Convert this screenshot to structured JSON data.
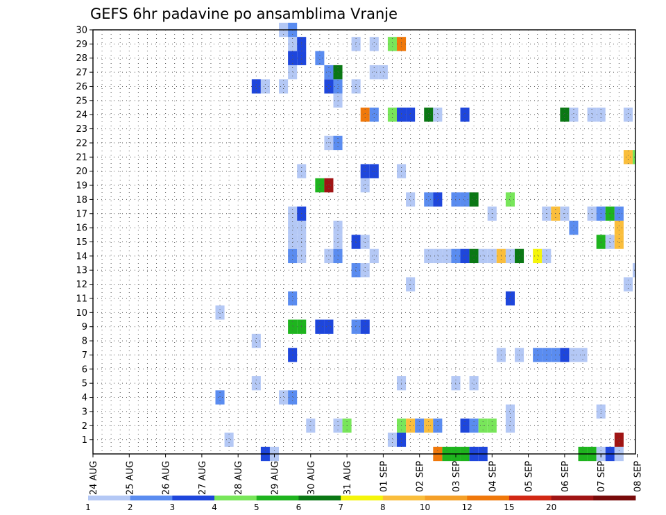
{
  "chart_data": {
    "type": "heatmap",
    "title": "GEFS 6hr padavine po ansamblima Vranje",
    "xlabel": "",
    "ylabel": "",
    "x_tick_labels": [
      "24 AUG",
      "25 AUG",
      "26 AUG",
      "27 AUG",
      "28 AUG",
      "29 AUG",
      "30 AUG",
      "31 AUG",
      "01 SEP",
      "02 SEP",
      "03 SEP",
      "04 SEP",
      "05 SEP",
      "06 SEP",
      "07 SEP",
      "08 SEP"
    ],
    "y_tick_labels": [
      "1",
      "2",
      "3",
      "4",
      "5",
      "6",
      "7",
      "8",
      "9",
      "10",
      "11",
      "12",
      "13",
      "14",
      "15",
      "16",
      "17",
      "18",
      "19",
      "20",
      "21",
      "22",
      "23",
      "24",
      "25",
      "26",
      "27",
      "28",
      "29",
      "30"
    ],
    "ylim": [
      0,
      30
    ],
    "x_steps_per_day": 4,
    "time_steps": 60,
    "grid": true,
    "colorbar": {
      "labels": [
        "1",
        "2",
        "3",
        "4",
        "5",
        "6",
        "7",
        "8",
        "10",
        "12",
        "15",
        "20"
      ],
      "colors": [
        "#b4c8f5",
        "#5a8cf0",
        "#1e46dc",
        "#78e65a",
        "#1eb41e",
        "#0a7814",
        "#f5f50a",
        "#fabe3c",
        "#f5a028",
        "#f0780a",
        "#d22814",
        "#a01414",
        "#780a0a"
      ]
    },
    "cells": [
      {
        "m": 0,
        "t": 39,
        "c": 4
      },
      {
        "m": 0,
        "t": 40,
        "c": 4
      },
      {
        "m": 0,
        "t": 38,
        "c": 9
      },
      {
        "m": 0,
        "t": 41,
        "c": 4
      },
      {
        "m": 0,
        "t": 42,
        "c": 2
      },
      {
        "m": 0,
        "t": 43,
        "c": 2
      },
      {
        "m": 0,
        "t": 54,
        "c": 4
      },
      {
        "m": 0,
        "t": 55,
        "c": 4
      },
      {
        "m": 0,
        "t": 56,
        "c": 0
      },
      {
        "m": 0,
        "t": 57,
        "c": 2
      },
      {
        "m": 0,
        "t": 58,
        "c": 0
      },
      {
        "m": 0,
        "t": 19,
        "c": 2
      },
      {
        "m": 0,
        "t": 20,
        "c": 0
      },
      {
        "m": 1,
        "t": 15,
        "c": 0
      },
      {
        "m": 1,
        "t": 33,
        "c": 0
      },
      {
        "m": 1,
        "t": 34,
        "c": 2
      },
      {
        "m": 1,
        "t": 58,
        "c": 11
      },
      {
        "m": 2,
        "t": 24,
        "c": 0
      },
      {
        "m": 2,
        "t": 27,
        "c": 0
      },
      {
        "m": 2,
        "t": 28,
        "c": 3
      },
      {
        "m": 2,
        "t": 34,
        "c": 3
      },
      {
        "m": 2,
        "t": 35,
        "c": 7
      },
      {
        "m": 2,
        "t": 36,
        "c": 1
      },
      {
        "m": 2,
        "t": 37,
        "c": 7
      },
      {
        "m": 2,
        "t": 38,
        "c": 1
      },
      {
        "m": 2,
        "t": 41,
        "c": 2
      },
      {
        "m": 2,
        "t": 42,
        "c": 1
      },
      {
        "m": 2,
        "t": 43,
        "c": 3
      },
      {
        "m": 2,
        "t": 44,
        "c": 3
      },
      {
        "m": 2,
        "t": 46,
        "c": 0
      },
      {
        "m": 3,
        "t": 46,
        "c": 0
      },
      {
        "m": 3,
        "t": 56,
        "c": 0
      },
      {
        "m": 4,
        "t": 14,
        "c": 1
      },
      {
        "m": 4,
        "t": 21,
        "c": 0
      },
      {
        "m": 4,
        "t": 22,
        "c": 1
      },
      {
        "m": 5,
        "t": 18,
        "c": 0
      },
      {
        "m": 5,
        "t": 34,
        "c": 0
      },
      {
        "m": 5,
        "t": 40,
        "c": 0
      },
      {
        "m": 5,
        "t": 42,
        "c": 0
      },
      {
        "m": 7,
        "t": 22,
        "c": 2
      },
      {
        "m": 7,
        "t": 45,
        "c": 0
      },
      {
        "m": 7,
        "t": 47,
        "c": 0
      },
      {
        "m": 7,
        "t": 49,
        "c": 1
      },
      {
        "m": 7,
        "t": 50,
        "c": 1
      },
      {
        "m": 7,
        "t": 51,
        "c": 1
      },
      {
        "m": 7,
        "t": 52,
        "c": 2
      },
      {
        "m": 7,
        "t": 53,
        "c": 0
      },
      {
        "m": 7,
        "t": 54,
        "c": 0
      },
      {
        "m": 8,
        "t": 18,
        "c": 0
      },
      {
        "m": 9,
        "t": 22,
        "c": 4
      },
      {
        "m": 9,
        "t": 23,
        "c": 4
      },
      {
        "m": 9,
        "t": 25,
        "c": 2
      },
      {
        "m": 9,
        "t": 26,
        "c": 2
      },
      {
        "m": 9,
        "t": 29,
        "c": 1
      },
      {
        "m": 9,
        "t": 30,
        "c": 2
      },
      {
        "m": 10,
        "t": 14,
        "c": 0
      },
      {
        "m": 11,
        "t": 22,
        "c": 1
      },
      {
        "m": 11,
        "t": 46,
        "c": 2
      },
      {
        "m": 12,
        "t": 35,
        "c": 0
      },
      {
        "m": 12,
        "t": 59,
        "c": 0
      },
      {
        "m": 13,
        "t": 29,
        "c": 1
      },
      {
        "m": 13,
        "t": 30,
        "c": 0
      },
      {
        "m": 13,
        "t": 60,
        "c": 0
      },
      {
        "m": 14,
        "t": 22,
        "c": 1
      },
      {
        "m": 14,
        "t": 23,
        "c": 0
      },
      {
        "m": 14,
        "t": 26,
        "c": 0
      },
      {
        "m": 14,
        "t": 27,
        "c": 1
      },
      {
        "m": 14,
        "t": 31,
        "c": 0
      },
      {
        "m": 14,
        "t": 37,
        "c": 0
      },
      {
        "m": 14,
        "t": 38,
        "c": 0
      },
      {
        "m": 14,
        "t": 39,
        "c": 0
      },
      {
        "m": 14,
        "t": 40,
        "c": 1
      },
      {
        "m": 14,
        "t": 41,
        "c": 2
      },
      {
        "m": 14,
        "t": 42,
        "c": 5
      },
      {
        "m": 14,
        "t": 43,
        "c": 0
      },
      {
        "m": 14,
        "t": 44,
        "c": 0
      },
      {
        "m": 14,
        "t": 45,
        "c": 7
      },
      {
        "m": 14,
        "t": 46,
        "c": 0
      },
      {
        "m": 14,
        "t": 47,
        "c": 5
      },
      {
        "m": 14,
        "t": 49,
        "c": 6
      },
      {
        "m": 14,
        "t": 50,
        "c": 0
      },
      {
        "m": 15,
        "t": 22,
        "c": 0
      },
      {
        "m": 15,
        "t": 23,
        "c": 0
      },
      {
        "m": 15,
        "t": 27,
        "c": 0
      },
      {
        "m": 15,
        "t": 29,
        "c": 2
      },
      {
        "m": 15,
        "t": 30,
        "c": 0
      },
      {
        "m": 15,
        "t": 56,
        "c": 4
      },
      {
        "m": 15,
        "t": 57,
        "c": 0
      },
      {
        "m": 15,
        "t": 58,
        "c": 7
      },
      {
        "m": 16,
        "t": 22,
        "c": 0
      },
      {
        "m": 16,
        "t": 23,
        "c": 0
      },
      {
        "m": 16,
        "t": 27,
        "c": 0
      },
      {
        "m": 16,
        "t": 53,
        "c": 1
      },
      {
        "m": 16,
        "t": 58,
        "c": 7
      },
      {
        "m": 17,
        "t": 22,
        "c": 0
      },
      {
        "m": 17,
        "t": 23,
        "c": 2
      },
      {
        "m": 17,
        "t": 44,
        "c": 0
      },
      {
        "m": 17,
        "t": 50,
        "c": 0
      },
      {
        "m": 17,
        "t": 51,
        "c": 7
      },
      {
        "m": 17,
        "t": 52,
        "c": 0
      },
      {
        "m": 17,
        "t": 55,
        "c": 0
      },
      {
        "m": 17,
        "t": 56,
        "c": 1
      },
      {
        "m": 17,
        "t": 57,
        "c": 4
      },
      {
        "m": 17,
        "t": 58,
        "c": 1
      },
      {
        "m": 18,
        "t": 35,
        "c": 0
      },
      {
        "m": 18,
        "t": 37,
        "c": 1
      },
      {
        "m": 18,
        "t": 38,
        "c": 2
      },
      {
        "m": 18,
        "t": 40,
        "c": 1
      },
      {
        "m": 18,
        "t": 41,
        "c": 1
      },
      {
        "m": 18,
        "t": 42,
        "c": 5
      },
      {
        "m": 18,
        "t": 46,
        "c": 3
      },
      {
        "m": 19,
        "t": 25,
        "c": 4
      },
      {
        "m": 19,
        "t": 26,
        "c": 11
      },
      {
        "m": 19,
        "t": 30,
        "c": 0
      },
      {
        "m": 20,
        "t": 23,
        "c": 0
      },
      {
        "m": 20,
        "t": 30,
        "c": 2
      },
      {
        "m": 20,
        "t": 31,
        "c": 2
      },
      {
        "m": 20,
        "t": 34,
        "c": 0
      },
      {
        "m": 21,
        "t": 59,
        "c": 7
      },
      {
        "m": 21,
        "t": 60,
        "c": 3
      },
      {
        "m": 22,
        "t": 26,
        "c": 0
      },
      {
        "m": 22,
        "t": 27,
        "c": 1
      },
      {
        "m": 24,
        "t": 30,
        "c": 9
      },
      {
        "m": 24,
        "t": 31,
        "c": 1
      },
      {
        "m": 24,
        "t": 33,
        "c": 3
      },
      {
        "m": 24,
        "t": 34,
        "c": 2
      },
      {
        "m": 24,
        "t": 35,
        "c": 2
      },
      {
        "m": 24,
        "t": 37,
        "c": 5
      },
      {
        "m": 24,
        "t": 38,
        "c": 0
      },
      {
        "m": 24,
        "t": 41,
        "c": 2
      },
      {
        "m": 24,
        "t": 52,
        "c": 5
      },
      {
        "m": 24,
        "t": 53,
        "c": 0
      },
      {
        "m": 24,
        "t": 55,
        "c": 0
      },
      {
        "m": 24,
        "t": 56,
        "c": 0
      },
      {
        "m": 24,
        "t": 59,
        "c": 0
      },
      {
        "m": 25,
        "t": 27,
        "c": 0
      },
      {
        "m": 26,
        "t": 18,
        "c": 2
      },
      {
        "m": 26,
        "t": 19,
        "c": 0
      },
      {
        "m": 26,
        "t": 21,
        "c": 0
      },
      {
        "m": 26,
        "t": 26,
        "c": 2
      },
      {
        "m": 26,
        "t": 27,
        "c": 1
      },
      {
        "m": 26,
        "t": 29,
        "c": 0
      },
      {
        "m": 27,
        "t": 22,
        "c": 0
      },
      {
        "m": 27,
        "t": 26,
        "c": 1
      },
      {
        "m": 27,
        "t": 27,
        "c": 5
      },
      {
        "m": 27,
        "t": 31,
        "c": 0
      },
      {
        "m": 27,
        "t": 32,
        "c": 0
      },
      {
        "m": 28,
        "t": 22,
        "c": 2
      },
      {
        "m": 28,
        "t": 23,
        "c": 2
      },
      {
        "m": 28,
        "t": 25,
        "c": 1
      },
      {
        "m": 29,
        "t": 22,
        "c": 0
      },
      {
        "m": 29,
        "t": 23,
        "c": 2
      },
      {
        "m": 29,
        "t": 29,
        "c": 0
      },
      {
        "m": 29,
        "t": 31,
        "c": 0
      },
      {
        "m": 29,
        "t": 33,
        "c": 3
      },
      {
        "m": 29,
        "t": 34,
        "c": 9
      },
      {
        "m": 30,
        "t": 21,
        "c": 0
      },
      {
        "m": 30,
        "t": 22,
        "c": 1
      }
    ]
  }
}
